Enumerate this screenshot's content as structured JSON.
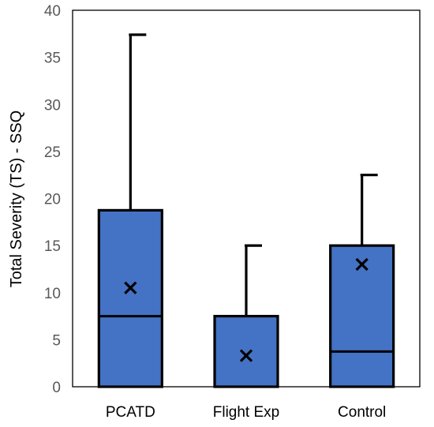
{
  "chart_data": {
    "type": "box",
    "categories": [
      "PCATD",
      "Flight Exp",
      "Control"
    ],
    "series": [
      {
        "category": "PCATD",
        "min": 0,
        "q1": 0,
        "median": 7.5,
        "q3": 18.75,
        "max": 37.4,
        "mean": 10.5
      },
      {
        "category": "Flight Exp",
        "min": 0,
        "q1": 0,
        "median": 0,
        "q3": 7.5,
        "max": 15,
        "mean": 3.3
      },
      {
        "category": "Control",
        "min": 0,
        "q1": 0,
        "median": 3.74,
        "q3": 15,
        "max": 22.5,
        "mean": 13
      }
    ],
    "xlabel": "",
    "ylabel": "Total Severity (TS) - SSQ",
    "ylim": [
      0,
      40
    ],
    "yticks": [
      "0",
      "5",
      "10",
      "15",
      "20",
      "25",
      "30",
      "35",
      "40"
    ],
    "grid": false,
    "legend": "none",
    "colors": {
      "box_fill": "#4472C4",
      "stroke": "#000000",
      "tick_text": "#595959"
    }
  }
}
